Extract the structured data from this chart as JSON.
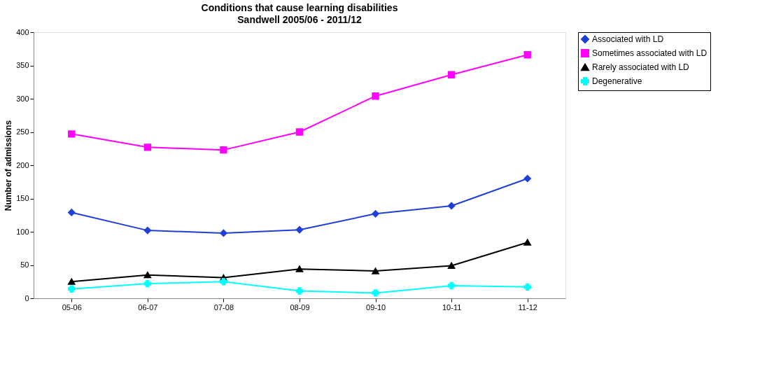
{
  "chart_data": {
    "type": "line",
    "title": "Conditions that cause learning disabilities",
    "subtitle": "Sandwell 2005/06 - 2011/12",
    "ylabel": "Number of admissions",
    "categories": [
      "05-06",
      "06-07",
      "07-08",
      "08-09",
      "09-10",
      "10-11",
      "11-12"
    ],
    "series": [
      {
        "name": "Associated with LD",
        "color": "#1f3fd8",
        "marker": "diamond",
        "values": [
          129,
          102,
          98,
          103,
          127,
          139,
          180
        ]
      },
      {
        "name": "Sometimes associated with LD",
        "color": "#ff00ff",
        "marker": "square",
        "values": [
          247,
          227,
          223,
          250,
          304,
          336,
          366
        ]
      },
      {
        "name": "Rarely associated with LD",
        "color": "#000000",
        "marker": "triangle",
        "values": [
          25,
          35,
          31,
          44,
          41,
          49,
          84
        ]
      },
      {
        "name": "Degenerative",
        "color": "#00ffff",
        "marker": "cross",
        "values": [
          14,
          22,
          25,
          11,
          8,
          19,
          17
        ]
      }
    ],
    "ylim": [
      0,
      400
    ],
    "yticks": [
      0,
      50,
      100,
      150,
      200,
      250,
      300,
      350,
      400
    ],
    "grid": false,
    "legend": "right",
    "line_style": "solid"
  }
}
